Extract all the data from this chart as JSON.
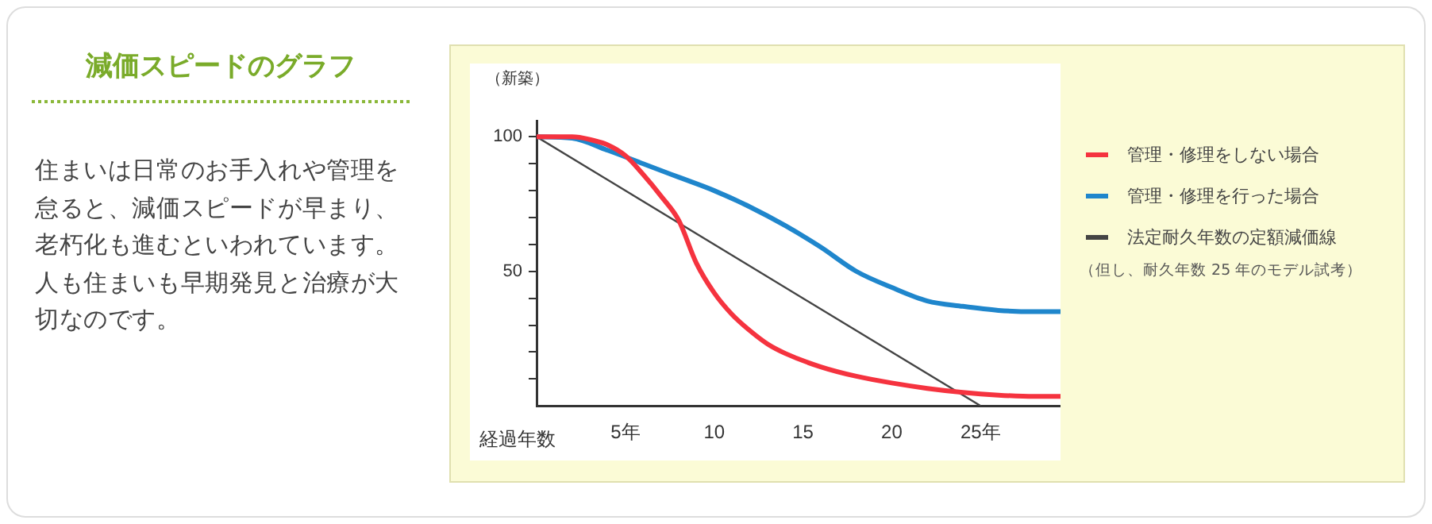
{
  "chart_data": {
    "type": "line",
    "title": "減価スピードのグラフ",
    "annotations": [
      "住まいは日常のお手入れや管理を怠ると、減価スピードが早まり、老朽化も進むといわれています。人も住まいも早期発見と治療が大切なのです。",
      "（但し、耐久年数 25 年のモデル試考）"
    ],
    "xlabel": "経過年数",
    "ylabel": "（新築）",
    "xlim": [
      0,
      29.5
    ],
    "xticks": [
      {
        "value": 5,
        "label": "5年"
      },
      10,
      15,
      20,
      {
        "value": 25,
        "label": "25年"
      }
    ],
    "ylim": [
      0,
      106
    ],
    "yticks": [
      {
        "value": 10,
        "label": null
      },
      {
        "value": 20,
        "label": null
      },
      {
        "value": 30,
        "label": null
      },
      {
        "value": 40,
        "label": null
      },
      50,
      {
        "value": 60,
        "label": null
      },
      {
        "value": 70,
        "label": null
      },
      {
        "value": 80,
        "label": null
      },
      {
        "value": 90,
        "label": null
      },
      100
    ],
    "grid": false,
    "legend": "right",
    "marker": "none",
    "line_style": "solid",
    "series": [
      {
        "name": "管理・修理をしない場合",
        "color": "#f5333f",
        "x": [
          0,
          2,
          3,
          4,
          5,
          6,
          7,
          8,
          9,
          10,
          11,
          12,
          13,
          14,
          16,
          18,
          20,
          22,
          24,
          26,
          28,
          29.5
        ],
        "values": [
          100,
          100,
          99,
          97,
          93,
          86,
          78,
          69,
          53,
          42,
          34,
          28,
          23,
          19.5,
          14.5,
          11,
          8.5,
          6.5,
          5,
          4,
          3.5,
          3.5
        ]
      },
      {
        "name": "管理・修理を行った場合",
        "color": "#1f86cc",
        "x": [
          0,
          2,
          4,
          6,
          8,
          10,
          12,
          14,
          16,
          18,
          20,
          22,
          24,
          26,
          28,
          29.5
        ],
        "values": [
          100,
          99.5,
          95,
          90,
          85,
          80,
          74,
          67,
          59,
          50,
          44,
          39,
          37,
          35.5,
          35,
          35
        ]
      },
      {
        "name": "法定耐久年数の定額減価線",
        "color": "#444444",
        "x": [
          0,
          25
        ],
        "values": [
          100,
          0
        ]
      }
    ]
  }
}
